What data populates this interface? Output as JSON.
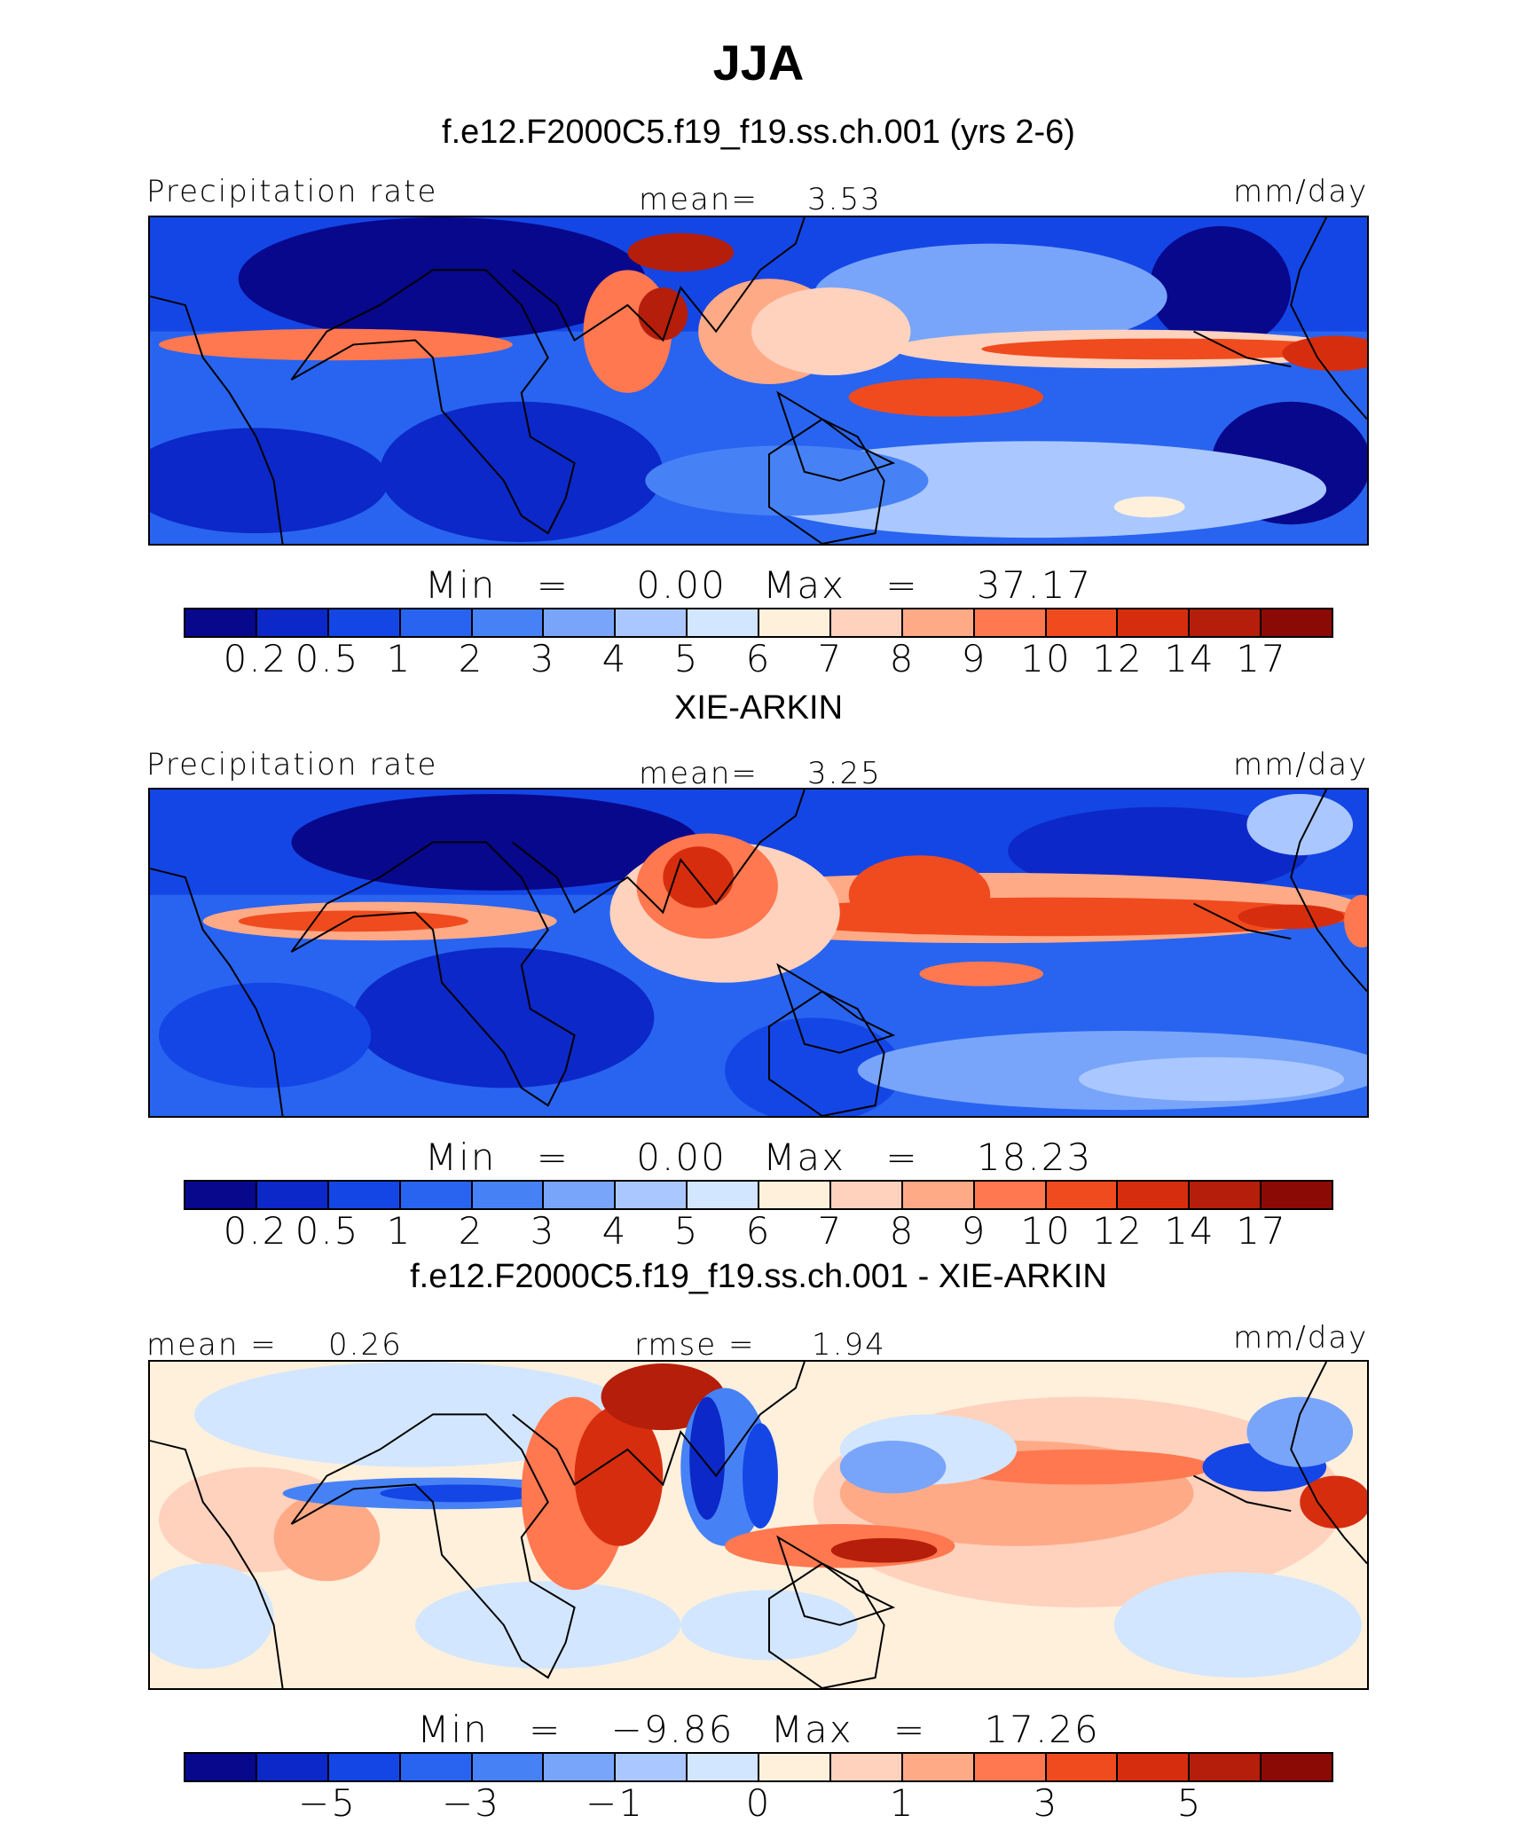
{
  "title": "JJA",
  "colors": [
    "#08088c",
    "#0c28c8",
    "#1446e6",
    "#2864f0",
    "#4682f5",
    "#78a5fa",
    "#aac8ff",
    "#d2e6ff",
    "#fff0dc",
    "#ffd2be",
    "#ffaa87",
    "#ff7850",
    "#f04b1e",
    "#d72d0f",
    "#b41e0a",
    "#8c0a05"
  ],
  "panels": [
    {
      "subtitle": "f.e12.F2000C5.f19_f19.ss.ch.001 (yrs 2-6)",
      "left_label": "Precipitation rate",
      "center_label": "mean=",
      "center_value": "3.53",
      "units": "mm/day",
      "min_label": "Min",
      "min_eq": "=",
      "min_value": "0.00",
      "max_label": "Max",
      "max_eq": "=",
      "max_value": "37.17",
      "ticks": [
        "0.2",
        "0.5",
        "1",
        "2",
        "3",
        "4",
        "5",
        "6",
        "7",
        "8",
        "9",
        "10",
        "12",
        "14",
        "17"
      ]
    },
    {
      "subtitle": "XIE-ARKIN",
      "left_label": "Precipitation rate",
      "center_label": "mean=",
      "center_value": "3.25",
      "units": "mm/day",
      "min_label": "Min",
      "min_eq": "=",
      "min_value": "0.00",
      "max_label": "Max",
      "max_eq": "=",
      "max_value": "18.23",
      "ticks": [
        "0.2",
        "0.5",
        "1",
        "2",
        "3",
        "4",
        "5",
        "6",
        "7",
        "8",
        "9",
        "10",
        "12",
        "14",
        "17"
      ]
    },
    {
      "subtitle": "f.e12.F2000C5.f19_f19.ss.ch.001 - XIE-ARKIN",
      "left_label": "mean =",
      "left_value": "0.26",
      "center_label": "rmse =",
      "center_value": "1.94",
      "units": "mm/day",
      "min_label": "Min",
      "min_eq": "=",
      "min_value": "−9.86",
      "max_label": "Max",
      "max_eq": "=",
      "max_value": "17.26",
      "ticks": [
        "−5",
        "−3",
        "−1",
        "0",
        "1",
        "3",
        "5"
      ]
    }
  ],
  "chart_data": [
    {
      "type": "heatmap",
      "title": "f.e12.F2000C5.f19_f19.ss.ch.001 (yrs 2-6)",
      "variable": "Precipitation rate",
      "units": "mm/day",
      "mean": 3.53,
      "min": 0.0,
      "max": 37.17,
      "contour_levels": [
        0.2,
        0.5,
        1,
        2,
        3,
        4,
        5,
        6,
        7,
        8,
        9,
        10,
        12,
        14,
        17
      ]
    },
    {
      "type": "heatmap",
      "title": "XIE-ARKIN",
      "variable": "Precipitation rate",
      "units": "mm/day",
      "mean": 3.25,
      "min": 0.0,
      "max": 18.23,
      "contour_levels": [
        0.2,
        0.5,
        1,
        2,
        3,
        4,
        5,
        6,
        7,
        8,
        9,
        10,
        12,
        14,
        17
      ]
    },
    {
      "type": "heatmap",
      "title": "f.e12.F2000C5.f19_f19.ss.ch.001 - XIE-ARKIN",
      "units": "mm/day",
      "mean": 0.26,
      "rmse": 1.94,
      "min": -9.86,
      "max": 17.26,
      "contour_levels": [
        -7,
        -6,
        -5,
        -4,
        -3,
        -2,
        -1,
        0,
        1,
        2,
        3,
        4,
        5,
        6,
        7
      ],
      "labeled_ticks": [
        -5,
        -3,
        -1,
        0,
        1,
        3,
        5
      ]
    }
  ]
}
